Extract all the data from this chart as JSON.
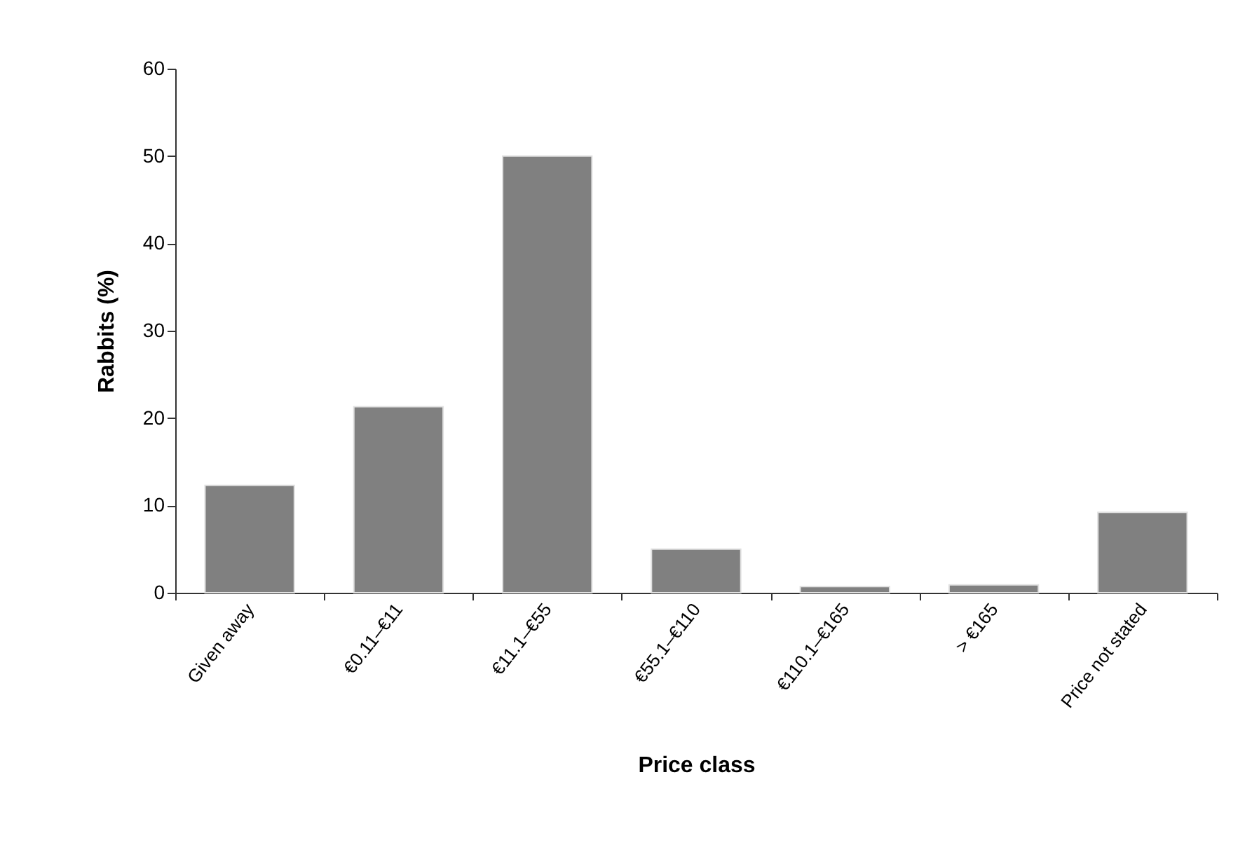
{
  "chart_data": {
    "type": "bar",
    "xlabel": "Price class",
    "ylabel": "Rabbits (%)",
    "categories": [
      "Given away",
      "€0.11–€11",
      "€11.1–€55",
      "€55.1–€110",
      "€110.1–€165",
      "> €165",
      "Price not stated"
    ],
    "values": [
      12.3,
      21.3,
      50,
      5,
      0.7,
      0.9,
      9.2
    ],
    "color": "#808080",
    "ylim": [
      0,
      60
    ],
    "yticks": [
      0,
      10,
      20,
      30,
      40,
      50,
      60
    ],
    "grid": false
  }
}
